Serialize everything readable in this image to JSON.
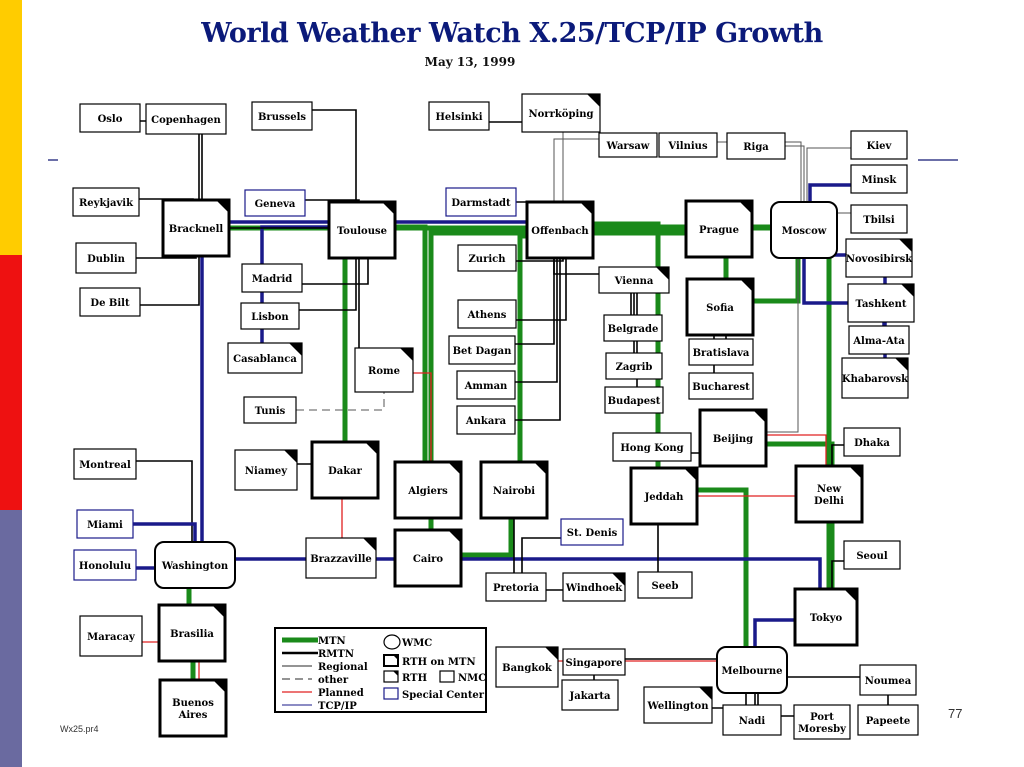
{
  "title": "World Weather Watch X.25/TCP/IP Growth",
  "subtitle": "May 13, 1999",
  "page_number": "77",
  "file_name": "Wx25.pr4",
  "colors": {
    "mtn": "#1a8a1a",
    "rmtn": "#000000",
    "regional": "#555555",
    "planned": "#e02020",
    "tcpip": "#1a1a8a",
    "title": "#0b1a7a",
    "sidebar": [
      "#ffcc00",
      "#ee1111",
      "#6a6aa0"
    ]
  },
  "legend": {
    "lines": [
      {
        "label": "MTN",
        "type": "mtn"
      },
      {
        "label": "RMTN",
        "type": "rmtn"
      },
      {
        "label": "Regional",
        "type": "regional"
      },
      {
        "label": "other",
        "type": "other"
      },
      {
        "label": "Planned",
        "type": "planned"
      },
      {
        "label": "TCP/IP",
        "type": "tcpip"
      }
    ],
    "symbols": [
      {
        "label": "WMC",
        "type": "wmc"
      },
      {
        "label": "RTH on MTN",
        "type": "rth-mtn"
      },
      {
        "label": "RTH",
        "type": "rth"
      },
      {
        "label": "NMC",
        "type": "nmc"
      },
      {
        "label": "Special Center",
        "type": "special"
      }
    ]
  },
  "nodes": [
    {
      "id": "oslo",
      "label": "Oslo",
      "type": "nmc"
    },
    {
      "id": "copenhagen",
      "label": "Copenhagen",
      "type": "nmc"
    },
    {
      "id": "brussels",
      "label": "Brussels",
      "type": "nmc"
    },
    {
      "id": "helsinki",
      "label": "Helsinki",
      "type": "nmc"
    },
    {
      "id": "norrkoping",
      "label": "Norrköping",
      "type": "rth"
    },
    {
      "id": "warsaw",
      "label": "Warsaw",
      "type": "nmc"
    },
    {
      "id": "vilnius",
      "label": "Vilnius",
      "type": "nmc"
    },
    {
      "id": "riga",
      "label": "Riga",
      "type": "nmc"
    },
    {
      "id": "kiev",
      "label": "Kiev",
      "type": "nmc"
    },
    {
      "id": "minsk",
      "label": "Minsk",
      "type": "nmc"
    },
    {
      "id": "tbilsi",
      "label": "Tbilsi",
      "type": "nmc"
    },
    {
      "id": "novosibirsk",
      "label": "Novosibirsk",
      "type": "rth"
    },
    {
      "id": "tashkent",
      "label": "Tashkent",
      "type": "rth"
    },
    {
      "id": "almaata",
      "label": "Alma-Ata",
      "type": "nmc"
    },
    {
      "id": "khabarovsk",
      "label": "Khabarovsk",
      "type": "rth"
    },
    {
      "id": "reykjavik",
      "label": "Reykjavik",
      "type": "nmc"
    },
    {
      "id": "dublin",
      "label": "Dublin",
      "type": "nmc"
    },
    {
      "id": "debilt",
      "label": "De Bilt",
      "type": "nmc"
    },
    {
      "id": "bracknell",
      "label": "Bracknell",
      "type": "rth-mtn"
    },
    {
      "id": "geneva",
      "label": "Geneva",
      "type": "special"
    },
    {
      "id": "toulouse",
      "label": "Toulouse",
      "type": "rth-mtn"
    },
    {
      "id": "darmstadt",
      "label": "Darmstadt",
      "type": "special"
    },
    {
      "id": "offenbach",
      "label": "Offenbach",
      "type": "rth-mtn"
    },
    {
      "id": "prague",
      "label": "Prague",
      "type": "rth-mtn"
    },
    {
      "id": "moscow",
      "label": "Moscow",
      "type": "wmc"
    },
    {
      "id": "madrid",
      "label": "Madrid",
      "type": "nmc"
    },
    {
      "id": "lisbon",
      "label": "Lisbon",
      "type": "nmc"
    },
    {
      "id": "casablanca",
      "label": "Casablanca",
      "type": "rth"
    },
    {
      "id": "zurich",
      "label": "Zurich",
      "type": "nmc"
    },
    {
      "id": "athens",
      "label": "Athens",
      "type": "nmc"
    },
    {
      "id": "betdagan",
      "label": "Bet Dagan",
      "type": "nmc"
    },
    {
      "id": "amman",
      "label": "Amman",
      "type": "nmc"
    },
    {
      "id": "ankara",
      "label": "Ankara",
      "type": "nmc"
    },
    {
      "id": "vienna",
      "label": "Vienna",
      "type": "rth"
    },
    {
      "id": "sofia",
      "label": "Sofia",
      "type": "rth-mtn"
    },
    {
      "id": "belgrade",
      "label": "Belgrade",
      "type": "nmc"
    },
    {
      "id": "zagrib",
      "label": "Zagrib",
      "type": "nmc"
    },
    {
      "id": "budapest",
      "label": "Budapest",
      "type": "nmc"
    },
    {
      "id": "bratislava",
      "label": "Bratislava",
      "type": "nmc"
    },
    {
      "id": "bucharest",
      "label": "Bucharest",
      "type": "nmc"
    },
    {
      "id": "rome",
      "label": "Rome",
      "type": "rth"
    },
    {
      "id": "tunis",
      "label": "Tunis",
      "type": "nmc"
    },
    {
      "id": "hongkong",
      "label": "Hong Kong",
      "type": "nmc"
    },
    {
      "id": "beijing",
      "label": "Beijing",
      "type": "rth-mtn"
    },
    {
      "id": "dhaka",
      "label": "Dhaka",
      "type": "nmc"
    },
    {
      "id": "montreal",
      "label": "Montreal",
      "type": "nmc"
    },
    {
      "id": "niamey",
      "label": "Niamey",
      "type": "rth"
    },
    {
      "id": "dakar",
      "label": "Dakar",
      "type": "rth-mtn"
    },
    {
      "id": "algiers",
      "label": "Algiers",
      "type": "rth-mtn"
    },
    {
      "id": "nairobi",
      "label": "Nairobi",
      "type": "rth-mtn"
    },
    {
      "id": "jeddah",
      "label": "Jeddah",
      "type": "rth-mtn"
    },
    {
      "id": "newdelhi",
      "label": "New Delhi",
      "type": "rth-mtn"
    },
    {
      "id": "miami",
      "label": "Miami",
      "type": "special"
    },
    {
      "id": "stdenis",
      "label": "St. Denis",
      "type": "special"
    },
    {
      "id": "seoul",
      "label": "Seoul",
      "type": "nmc"
    },
    {
      "id": "honolulu",
      "label": "Honolulu",
      "type": "special"
    },
    {
      "id": "washington",
      "label": "Washington",
      "type": "wmc"
    },
    {
      "id": "brazzaville",
      "label": "Brazzaville",
      "type": "rth"
    },
    {
      "id": "cairo",
      "label": "Cairo",
      "type": "rth-mtn"
    },
    {
      "id": "pretoria",
      "label": "Pretoria",
      "type": "nmc"
    },
    {
      "id": "windhoek",
      "label": "Windhoek",
      "type": "rth"
    },
    {
      "id": "seeb",
      "label": "Seeb",
      "type": "nmc"
    },
    {
      "id": "tokyo",
      "label": "Tokyo",
      "type": "rth-mtn"
    },
    {
      "id": "maracay",
      "label": "Maracay",
      "type": "nmc"
    },
    {
      "id": "brasilia",
      "label": "Brasilia",
      "type": "rth-mtn"
    },
    {
      "id": "bangkok",
      "label": "Bangkok",
      "type": "rth"
    },
    {
      "id": "singapore",
      "label": "Singapore",
      "type": "nmc"
    },
    {
      "id": "jakarta",
      "label": "Jakarta",
      "type": "nmc"
    },
    {
      "id": "melbourne",
      "label": "Melbourne",
      "type": "wmc"
    },
    {
      "id": "noumea",
      "label": "Noumea",
      "type": "nmc"
    },
    {
      "id": "buenosaires",
      "label": "Buenos Aires",
      "type": "rth-mtn"
    },
    {
      "id": "wellington",
      "label": "Wellington",
      "type": "rth"
    },
    {
      "id": "nadi",
      "label": "Nadi",
      "type": "nmc"
    },
    {
      "id": "portmoresby",
      "label": "Port Moresby",
      "type": "nmc"
    },
    {
      "id": "papeete",
      "label": "Papeete",
      "type": "nmc"
    }
  ],
  "links": [
    {
      "from": "bracknell",
      "to": "offenbach",
      "type": "tcpip"
    },
    {
      "from": "offenbach",
      "to": "moscow",
      "type": "mtn"
    },
    {
      "from": "bracknell",
      "to": "moscow",
      "type": "mtn"
    },
    {
      "from": "offenbach",
      "to": "prague",
      "type": "mtn"
    },
    {
      "from": "prague",
      "to": "sofia",
      "type": "mtn"
    },
    {
      "from": "sofia",
      "to": "moscow",
      "type": "mtn"
    },
    {
      "from": "toulouse",
      "to": "algiers",
      "type": "mtn"
    },
    {
      "from": "toulouse",
      "to": "dakar",
      "type": "mtn"
    },
    {
      "from": "offenbach",
      "to": "cairo",
      "type": "mtn"
    },
    {
      "from": "offenbach",
      "to": "nairobi",
      "type": "mtn"
    },
    {
      "from": "offenbach",
      "to": "jeddah",
      "type": "mtn"
    },
    {
      "from": "cairo",
      "to": "nairobi",
      "type": "mtn"
    },
    {
      "from": "moscow",
      "to": "newdelhi",
      "type": "mtn"
    },
    {
      "from": "newdelhi",
      "to": "tokyo",
      "type": "mtn"
    },
    {
      "from": "beijing",
      "to": "tokyo",
      "type": "mtn"
    },
    {
      "from": "jeddah",
      "to": "melbourne",
      "type": "mtn"
    },
    {
      "from": "washington",
      "to": "brasilia",
      "type": "mtn"
    },
    {
      "from": "brasilia",
      "to": "buenosaires",
      "type": "mtn"
    },
    {
      "from": "tokyo",
      "to": "melbourne",
      "type": "tcpip"
    },
    {
      "from": "washington",
      "to": "bracknell",
      "type": "tcpip"
    },
    {
      "from": "washington",
      "to": "tokyo",
      "type": "tcpip"
    },
    {
      "from": "toulouse",
      "to": "casablanca",
      "type": "tcpip"
    },
    {
      "from": "bracknell",
      "to": "toulouse",
      "type": "rmtn"
    },
    {
      "from": "oslo",
      "to": "bracknell",
      "type": "rmtn"
    },
    {
      "from": "copenhagen",
      "to": "bracknell",
      "type": "rmtn"
    },
    {
      "from": "brussels",
      "to": "toulouse",
      "type": "rmtn"
    },
    {
      "from": "reykjavik",
      "to": "bracknell",
      "type": "rmtn"
    },
    {
      "from": "dublin",
      "to": "bracknell",
      "type": "rmtn"
    },
    {
      "from": "debilt",
      "to": "bracknell",
      "type": "rmtn"
    },
    {
      "from": "madrid",
      "to": "toulouse",
      "type": "rmtn"
    },
    {
      "from": "lisbon",
      "to": "toulouse",
      "type": "rmtn"
    },
    {
      "from": "geneva",
      "to": "toulouse",
      "type": "rmtn"
    },
    {
      "from": "darmstadt",
      "to": "offenbach",
      "type": "rmtn"
    },
    {
      "from": "zurich",
      "to": "offenbach",
      "type": "rmtn"
    },
    {
      "from": "athens",
      "to": "offenbach",
      "type": "rmtn"
    },
    {
      "from": "betdagan",
      "to": "offenbach",
      "type": "rmtn"
    },
    {
      "from": "amman",
      "to": "offenbach",
      "type": "rmtn"
    },
    {
      "from": "ankara",
      "to": "offenbach",
      "type": "rmtn"
    },
    {
      "from": "norrkoping",
      "to": "offenbach",
      "type": "regional"
    },
    {
      "from": "helsinki",
      "to": "norrkoping",
      "type": "rmtn"
    },
    {
      "from": "warsaw",
      "to": "offenbach",
      "type": "regional"
    },
    {
      "from": "vilnius",
      "to": "moscow",
      "type": "regional"
    },
    {
      "from": "riga",
      "to": "moscow",
      "type": "regional"
    },
    {
      "from": "kiev",
      "to": "moscow",
      "type": "regional"
    },
    {
      "from": "minsk",
      "to": "moscow",
      "type": "tcpip"
    },
    {
      "from": "tbilsi",
      "to": "moscow",
      "type": "regional"
    },
    {
      "from": "novosibirsk",
      "to": "moscow",
      "type": "tcpip"
    },
    {
      "from": "tashkent",
      "to": "moscow",
      "type": "tcpip"
    },
    {
      "from": "almaata",
      "to": "tashkent",
      "type": "tcpip"
    },
    {
      "from": "khabarovsk",
      "to": "novosibirsk",
      "type": "tcpip"
    },
    {
      "from": "vienna",
      "to": "offenbach",
      "type": "rmtn"
    },
    {
      "from": "belgrade",
      "to": "vienna",
      "type": "rmtn"
    },
    {
      "from": "zagrib",
      "to": "vienna",
      "type": "rmtn"
    },
    {
      "from": "budapest",
      "to": "vienna",
      "type": "rmtn"
    },
    {
      "from": "bratislava",
      "to": "sofia",
      "type": "rmtn"
    },
    {
      "from": "bucharest",
      "to": "sofia",
      "type": "rmtn"
    },
    {
      "from": "rome",
      "to": "toulouse",
      "type": "rmtn"
    },
    {
      "from": "tunis",
      "to": "rome",
      "type": "other"
    },
    {
      "from": "rome",
      "to": "algiers",
      "type": "planned"
    },
    {
      "from": "hongkong",
      "to": "beijing",
      "type": "rmtn"
    },
    {
      "from": "beijing",
      "to": "moscow",
      "type": "regional"
    },
    {
      "from": "beijing",
      "to": "newdelhi",
      "type": "planned"
    },
    {
      "from": "jeddah",
      "to": "newdelhi",
      "type": "planned"
    },
    {
      "from": "dhaka",
      "to": "newdelhi",
      "type": "rmtn"
    },
    {
      "from": "seoul",
      "to": "tokyo",
      "type": "rmtn"
    },
    {
      "from": "niamey",
      "to": "dakar",
      "type": "rmtn"
    },
    {
      "from": "brazzaville",
      "to": "dakar",
      "type": "planned"
    },
    {
      "from": "pretoria",
      "to": "nairobi",
      "type": "rmtn"
    },
    {
      "from": "windhoek",
      "to": "pretoria",
      "type": "rmtn"
    },
    {
      "from": "stdenis",
      "to": "pretoria",
      "type": "rmtn"
    },
    {
      "from": "seeb",
      "to": "jeddah",
      "type": "rmtn"
    },
    {
      "from": "montreal",
      "to": "washington",
      "type": "rmtn"
    },
    {
      "from": "miami",
      "to": "washington",
      "type": "tcpip"
    },
    {
      "from": "honolulu",
      "to": "washington",
      "type": "tcpip"
    },
    {
      "from": "maracay",
      "to": "buenosaires",
      "type": "planned"
    },
    {
      "from": "bangkok",
      "to": "melbourne",
      "type": "planned"
    },
    {
      "from": "singapore",
      "to": "melbourne",
      "type": "rmtn"
    },
    {
      "from": "jakarta",
      "to": "singapore",
      "type": "rmtn"
    },
    {
      "from": "wellington",
      "to": "melbourne",
      "type": "rmtn"
    },
    {
      "from": "nadi",
      "to": "melbourne",
      "type": "rmtn"
    },
    {
      "from": "portmoresby",
      "to": "melbourne",
      "type": "rmtn"
    },
    {
      "from": "noumea",
      "to": "melbourne",
      "type": "rmtn"
    },
    {
      "from": "papeete",
      "to": "noumea",
      "type": "rmtn"
    }
  ]
}
